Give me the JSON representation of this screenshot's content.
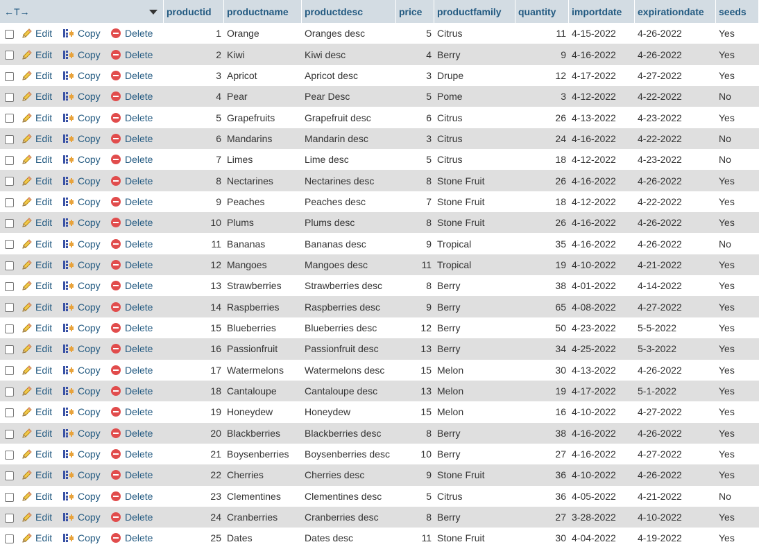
{
  "header": {
    "nav_arrows": "←T→",
    "columns": [
      "productid",
      "productname",
      "productdesc",
      "price",
      "productfamily",
      "quantity",
      "importdate",
      "expirationdate",
      "seeds"
    ]
  },
  "actions": {
    "edit": "Edit",
    "copy": "Copy",
    "delete": "Delete"
  },
  "rows": [
    [
      "1",
      "Orange",
      "Oranges desc",
      "5",
      "Citrus",
      "11",
      "4-15-2022",
      "4-26-2022",
      "Yes"
    ],
    [
      "2",
      "Kiwi",
      "Kiwi desc",
      "4",
      "Berry",
      "9",
      "4-16-2022",
      "4-26-2022",
      "Yes"
    ],
    [
      "3",
      "Apricot",
      "Apricot desc",
      "3",
      "Drupe",
      "12",
      "4-17-2022",
      "4-27-2022",
      "Yes"
    ],
    [
      "4",
      "Pear",
      "Pear Desc",
      "5",
      "Pome",
      "3",
      "4-12-2022",
      "4-22-2022",
      "No"
    ],
    [
      "5",
      "Grapefruits",
      "Grapefruit desc",
      "6",
      "Citrus",
      "26",
      "4-13-2022",
      "4-23-2022",
      "Yes"
    ],
    [
      "6",
      "Mandarins",
      "Mandarin desc",
      "3",
      "Citrus",
      "24",
      "4-16-2022",
      "4-22-2022",
      "No"
    ],
    [
      "7",
      "Limes",
      "Lime desc",
      "5",
      "Citrus",
      "18",
      "4-12-2022",
      "4-23-2022",
      "No"
    ],
    [
      "8",
      "Nectarines",
      "Nectarines desc",
      "8",
      "Stone Fruit",
      "26",
      "4-16-2022",
      "4-26-2022",
      "Yes"
    ],
    [
      "9",
      "Peaches",
      "Peaches desc",
      "7",
      "Stone Fruit",
      "18",
      "4-12-2022",
      "4-22-2022",
      "Yes"
    ],
    [
      "10",
      "Plums",
      "Plums desc",
      "8",
      "Stone Fruit",
      "26",
      "4-16-2022",
      "4-26-2022",
      "Yes"
    ],
    [
      "11",
      "Bananas",
      "Bananas desc",
      "9",
      "Tropical",
      "35",
      "4-16-2022",
      "4-26-2022",
      "No"
    ],
    [
      "12",
      "Mangoes",
      "Mangoes desc",
      "11",
      "Tropical",
      "19",
      "4-10-2022",
      "4-21-2022",
      "Yes"
    ],
    [
      "13",
      "Strawberries",
      "Strawberries desc",
      "8",
      "Berry",
      "38",
      "4-01-2022",
      "4-14-2022",
      "Yes"
    ],
    [
      "14",
      "Raspberries",
      "Raspberries desc",
      "9",
      "Berry",
      "65",
      "4-08-2022",
      "4-27-2022",
      "Yes"
    ],
    [
      "15",
      "Blueberries",
      "Blueberries desc",
      "12",
      "Berry",
      "50",
      "4-23-2022",
      "5-5-2022",
      "Yes"
    ],
    [
      "16",
      "Passionfruit",
      "Passionfruit desc",
      "13",
      "Berry",
      "34",
      "4-25-2022",
      "5-3-2022",
      "Yes"
    ],
    [
      "17",
      "Watermelons",
      "Watermelons desc",
      "15",
      "Melon",
      "30",
      "4-13-2022",
      "4-26-2022",
      "Yes"
    ],
    [
      "18",
      "Cantaloupe",
      "Cantaloupe desc",
      "13",
      "Melon",
      "19",
      "4-17-2022",
      "5-1-2022",
      "Yes"
    ],
    [
      "19",
      "Honeydew",
      "Honeydew",
      "15",
      "Melon",
      "16",
      "4-10-2022",
      "4-27-2022",
      "Yes"
    ],
    [
      "20",
      "Blackberries",
      "Blackberries desc",
      "8",
      "Berry",
      "38",
      "4-16-2022",
      "4-26-2022",
      "Yes"
    ],
    [
      "21",
      "Boysenberries",
      "Boysenberries desc",
      "10",
      "Berry",
      "27",
      "4-16-2022",
      "4-27-2022",
      "Yes"
    ],
    [
      "22",
      "Cherries",
      "Cherries desc",
      "9",
      "Stone Fruit",
      "36",
      "4-10-2022",
      "4-26-2022",
      "Yes"
    ],
    [
      "23",
      "Clementines",
      "Clementines desc",
      "5",
      "Citrus",
      "36",
      "4-05-2022",
      "4-21-2022",
      "No"
    ],
    [
      "24",
      "Cranberries",
      "Cranberries desc",
      "8",
      "Berry",
      "27",
      "3-28-2022",
      "4-10-2022",
      "Yes"
    ],
    [
      "25",
      "Dates",
      "Dates desc",
      "11",
      "Stone Fruit",
      "30",
      "4-04-2022",
      "4-19-2022",
      "Yes"
    ]
  ]
}
